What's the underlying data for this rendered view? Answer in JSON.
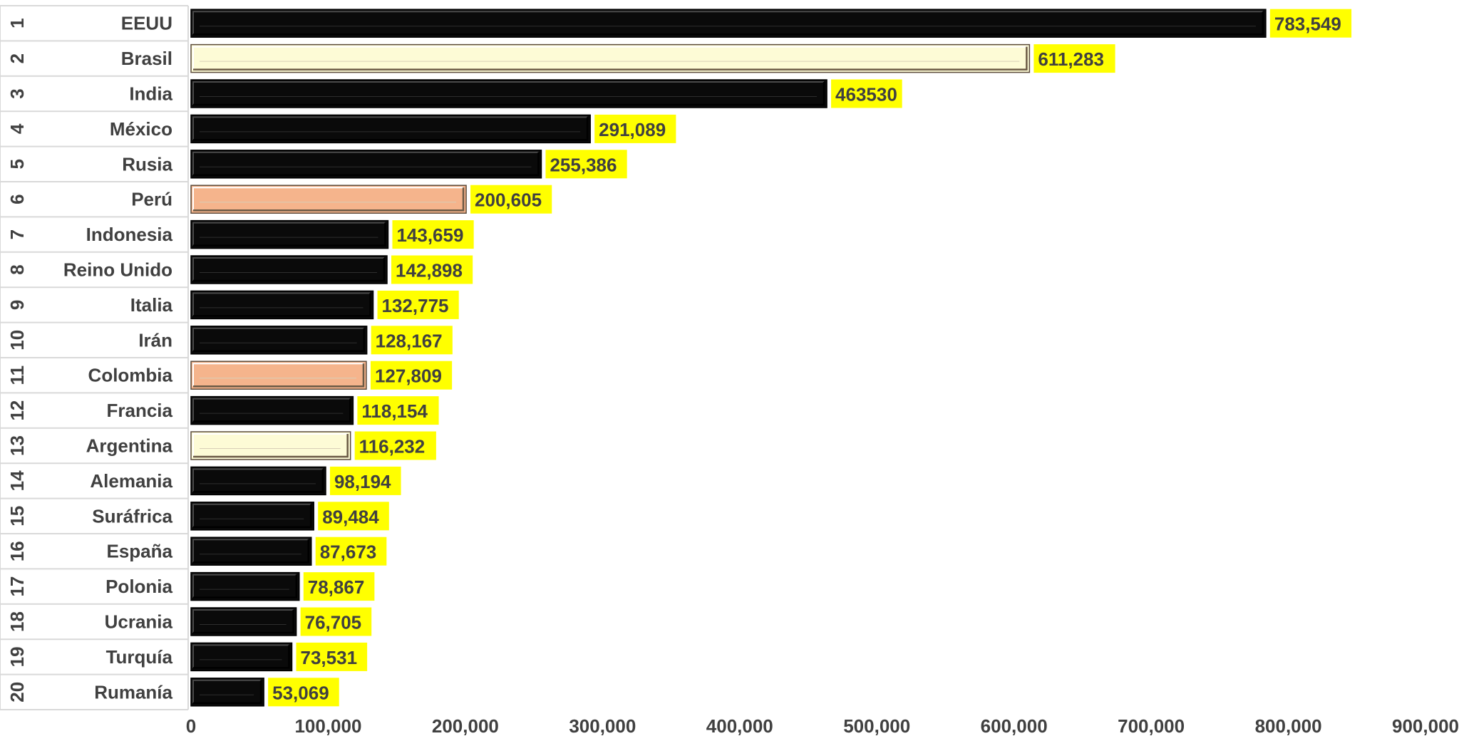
{
  "chart_data": {
    "type": "bar",
    "orientation": "horizontal",
    "xlim": [
      0,
      900000
    ],
    "x_ticks": [
      "0",
      "100,000",
      "200,000",
      "300,000",
      "400,000",
      "500,000",
      "600,000",
      "700,000",
      "800,000",
      "900,000"
    ],
    "ranks": [
      "1",
      "2",
      "3",
      "4",
      "5",
      "6",
      "7",
      "8",
      "9",
      "10",
      "11",
      "12",
      "13",
      "14",
      "15",
      "16",
      "17",
      "18",
      "19",
      "20"
    ],
    "categories": [
      "EEUU",
      "Brasil",
      "India",
      "México",
      "Rusia",
      "Perú",
      "Indonesia",
      "Reino Unido",
      "Italia",
      "Irán",
      "Colombia",
      "Francia",
      "Argentina",
      "Alemania",
      "Suráfrica",
      "España",
      "Polonia",
      "Ucrania",
      "Turquía",
      "Rumanía"
    ],
    "values": [
      783549,
      611283,
      463530,
      291089,
      255386,
      200605,
      143659,
      142898,
      132775,
      128167,
      127809,
      118154,
      116232,
      98194,
      89484,
      87673,
      78867,
      76705,
      73531,
      53069
    ],
    "data_labels": [
      "783,549",
      "611,283",
      "463530",
      "291,089",
      "255,386",
      "200,605",
      "143,659",
      "142,898",
      "132,775",
      "128,167",
      "127,809",
      "118,154",
      "116,232",
      "98,194",
      "89,484",
      "87,673",
      "78,867",
      "76,705",
      "73,531",
      "53,069"
    ],
    "bar_colors": [
      "#0a0a0a",
      "#fdfbd6",
      "#0a0a0a",
      "#0a0a0a",
      "#0a0a0a",
      "#f5b48c",
      "#0a0a0a",
      "#0a0a0a",
      "#0a0a0a",
      "#0a0a0a",
      "#f5b48c",
      "#0a0a0a",
      "#fdfbd6",
      "#0a0a0a",
      "#0a0a0a",
      "#0a0a0a",
      "#0a0a0a",
      "#0a0a0a",
      "#0a0a0a",
      "#0a0a0a"
    ],
    "label_background": "#ffff00",
    "text_color": "#404040",
    "grid": false,
    "legend": "none"
  }
}
